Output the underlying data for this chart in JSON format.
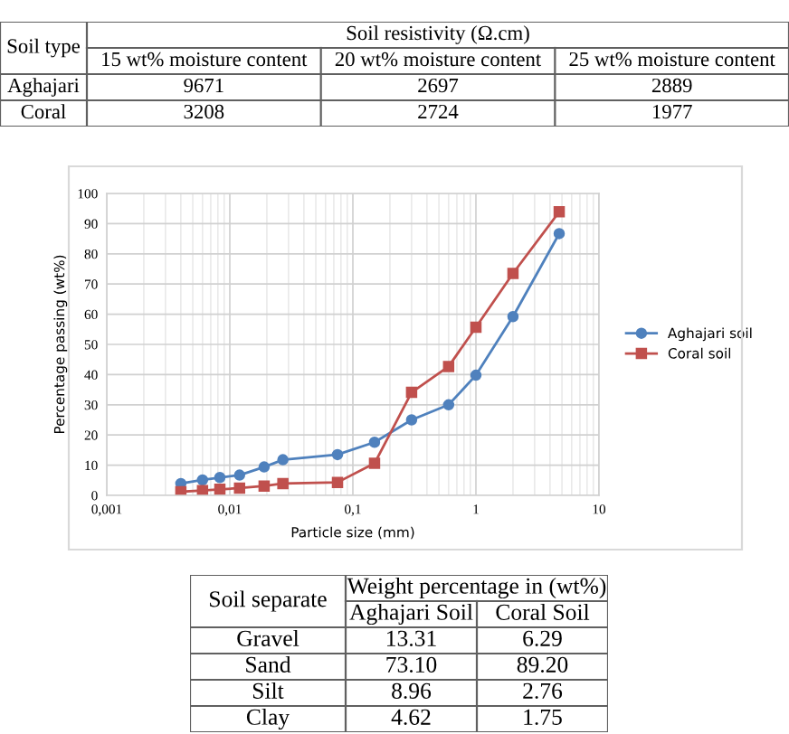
{
  "chart_data": [
    {
      "type": "other",
      "annotations": [
        "Soil type",
        "Soil resistivity (Ω.cm)",
        "15 wt% moisture content",
        "20 wt% moisture content",
        "25 wt% moisture content",
        "Aghajari",
        "9671",
        "2697",
        "2889",
        "Coral",
        "3208",
        "2724",
        "1977"
      ]
    },
    {
      "type": "line",
      "xlabel": "Particle size (mm)",
      "ylabel": "Percentage passing (wt%)",
      "log": "x",
      "x": [
        0.004,
        0.006,
        0.0083,
        0.012,
        0.019,
        0.027,
        0.075,
        0.15,
        0.3,
        0.6,
        1.0,
        2.0,
        4.75
      ],
      "series": [
        {
          "name": "Aghajari soil",
          "color": "#4f81bd",
          "marker": "circle",
          "values": [
            3.9,
            5.1,
            5.9,
            6.7,
            9.4,
            11.8,
            13.5,
            17.6,
            25,
            30,
            39.8,
            59.2,
            86.7
          ]
        },
        {
          "name": "Coral soil",
          "color": "#c0504d",
          "marker": "square",
          "values": [
            1.2,
            1.6,
            2,
            2.4,
            3.1,
            3.9,
            4.3,
            10.6,
            34.1,
            42.7,
            55.7,
            73.5,
            93.9
          ]
        }
      ],
      "xlim": [
        0.001,
        10
      ],
      "xticks": [
        {
          "value": 0.001,
          "label": "0,001"
        },
        {
          "value": 0.01,
          "label": "0,01"
        },
        {
          "value": 0.1,
          "label": "0,1"
        },
        1,
        10
      ],
      "ylim": [
        0,
        100
      ],
      "yticks": [
        0,
        10,
        20,
        30,
        40,
        50,
        60,
        70,
        80,
        90,
        100
      ],
      "grid": true,
      "legend": "right",
      "line_style": "solid"
    },
    {
      "type": "other",
      "annotations": [
        "Soil separate",
        "Weight percentage in (wt%)",
        "Aghajari Soil",
        "Coral Soil",
        "Gravel",
        "13.31",
        "6.29",
        "Sand",
        "73.10",
        "89.20",
        "Silt",
        "8.96",
        "2.76",
        "Clay",
        "4.62",
        "1.75"
      ]
    }
  ]
}
